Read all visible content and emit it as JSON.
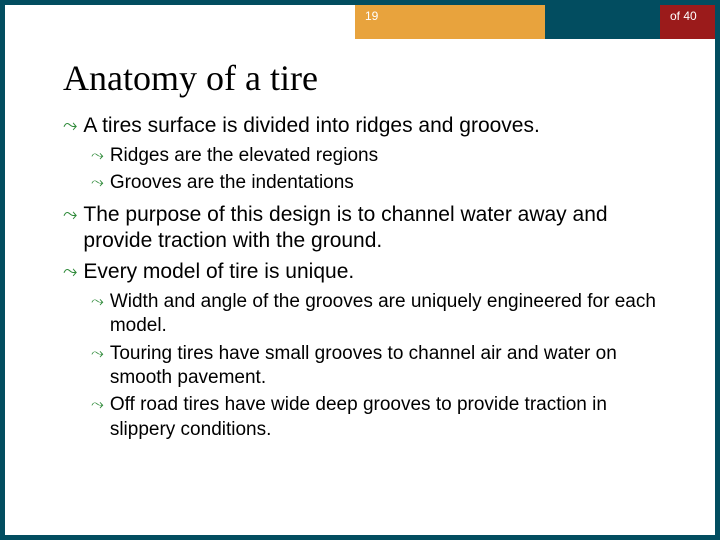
{
  "colors": {
    "border": "#024d60",
    "accent_orange": "#e8a33d",
    "accent_red": "#9b1b1b",
    "bullet": "#2f8a3a",
    "text": "#000000",
    "background": "#ffffff"
  },
  "page": {
    "current": "19",
    "total": "of 40"
  },
  "title": "Anatomy of a tire",
  "bullets": {
    "b1": "A tires surface is divided into ridges and grooves.",
    "b1_1": "Ridges are the elevated regions",
    "b1_2": "Grooves are the indentations",
    "b2": "The purpose of this design is to channel water away and provide traction with the ground.",
    "b3": "Every model of tire is unique.",
    "b3_1": "Width and angle of the grooves are uniquely engineered for each model.",
    "b3_2": "Touring tires have small grooves to  channel air and water on smooth pavement.",
    "b3_3": "Off road tires have wide deep grooves to provide traction in slippery conditions."
  },
  "typography": {
    "title_fontsize": 36,
    "lvl1_fontsize": 21,
    "lvl2_fontsize": 19
  }
}
